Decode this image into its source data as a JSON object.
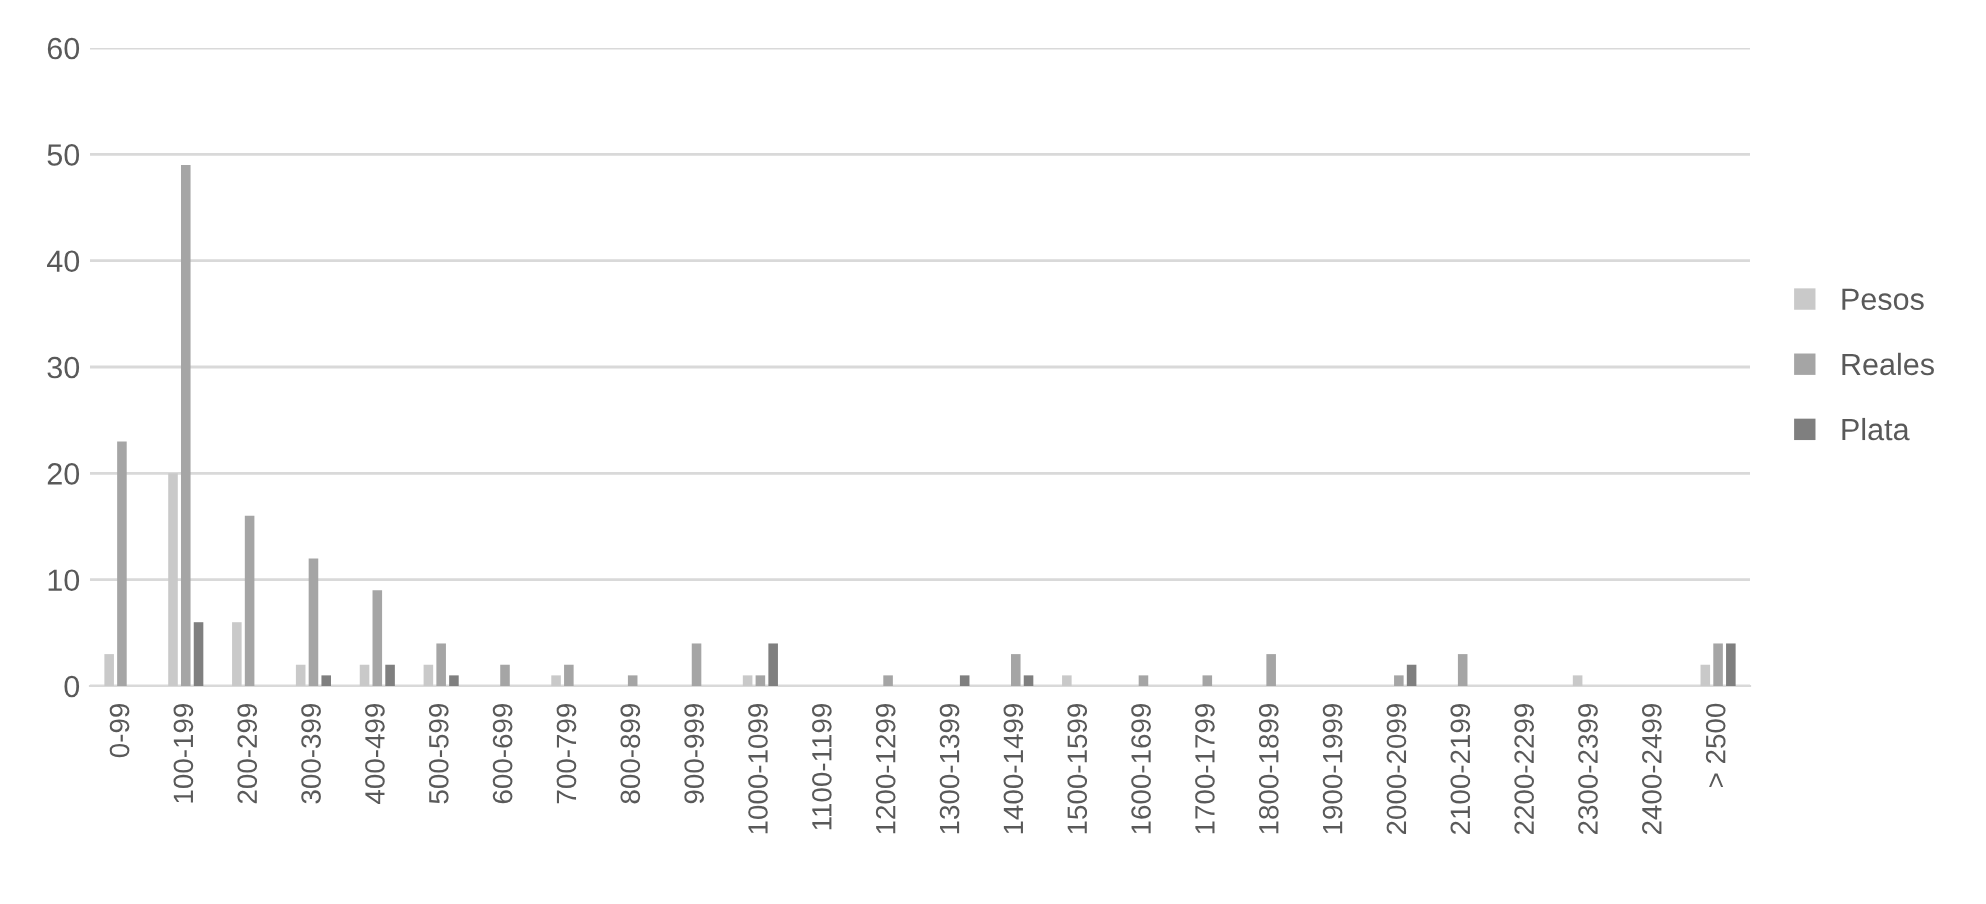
{
  "chart_data": {
    "type": "bar",
    "categories": [
      "0-99",
      "100-199",
      "200-299",
      "300-399",
      "400-499",
      "500-599",
      "600-699",
      "700-799",
      "800-899",
      "900-999",
      "1000-1099",
      "1100-1199",
      "1200-1299",
      "1300-1399",
      "1400-1499",
      "1500-1599",
      "1600-1699",
      "1700-1799",
      "1800-1899",
      "1900-1999",
      "2000-2099",
      "2100-2199",
      "2200-2299",
      "2300-2399",
      "2400-2499",
      "> 2500"
    ],
    "series": [
      {
        "name": "Pesos",
        "color": "#c9c9c9",
        "values": [
          3,
          20,
          6,
          2,
          2,
          2,
          0,
          1,
          0,
          0,
          1,
          0,
          0,
          0,
          0,
          1,
          0,
          0,
          0,
          0,
          0,
          0,
          0,
          1,
          0,
          2
        ]
      },
      {
        "name": "Reales",
        "color": "#a5a5a5",
        "values": [
          23,
          49,
          16,
          12,
          9,
          4,
          2,
          2,
          1,
          4,
          1,
          0,
          1,
          0,
          3,
          0,
          1,
          1,
          3,
          0,
          1,
          3,
          0,
          0,
          0,
          4
        ]
      },
      {
        "name": "Plata",
        "color": "#7f7f7f",
        "values": [
          0,
          6,
          0,
          1,
          2,
          1,
          0,
          0,
          0,
          0,
          4,
          0,
          0,
          1,
          1,
          0,
          0,
          0,
          0,
          0,
          2,
          0,
          0,
          0,
          0,
          4
        ]
      }
    ],
    "ylim": [
      0,
      60
    ],
    "yticks": [
      0,
      10,
      20,
      30,
      40,
      50,
      60
    ],
    "grid": "y",
    "legend": "right"
  }
}
